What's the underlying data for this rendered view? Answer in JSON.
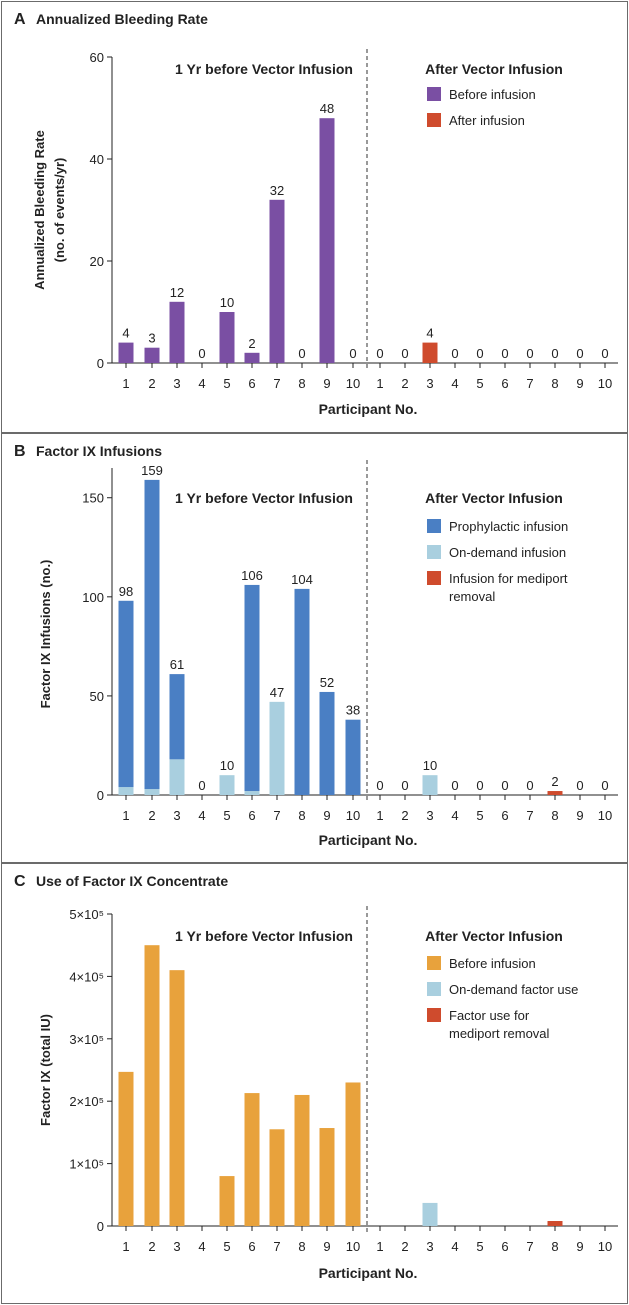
{
  "chart_data": [
    {
      "type": "bar",
      "panel_letter": "A",
      "title": "Annualized Bleeding Rate",
      "ylabel_lines": [
        "Annualized Bleeding Rate",
        "(no. of events/yr)"
      ],
      "xlabel": "Participant No.",
      "ylim": [
        0,
        60
      ],
      "yticks": [
        "0",
        "20",
        "40",
        "60"
      ],
      "section_labels": [
        "1 Yr before Vector Infusion",
        "After Vector Infusion"
      ],
      "categories": [
        "1",
        "2",
        "3",
        "4",
        "5",
        "6",
        "7",
        "8",
        "9",
        "10"
      ],
      "legend": [
        {
          "label": "Before infusion",
          "color": "#7a4fa3"
        },
        {
          "label": "After infusion",
          "color": "#cf4b2d"
        }
      ],
      "groups": [
        {
          "name": "1 Yr before Vector Infusion",
          "series": [
            {
              "key": "before",
              "color": "#7a4fa3",
              "values": [
                4,
                3,
                12,
                0,
                10,
                2,
                32,
                0,
                48,
                0
              ]
            }
          ],
          "totals": [
            4,
            3,
            12,
            0,
            10,
            2,
            32,
            0,
            48,
            0
          ],
          "labels": [
            "4",
            "3",
            "12",
            "0",
            "10",
            "2",
            "32",
            "0",
            "48",
            "0"
          ]
        },
        {
          "name": "After Vector Infusion",
          "series": [
            {
              "key": "after",
              "color": "#cf4b2d",
              "values": [
                0,
                0,
                4,
                0,
                0,
                0,
                0,
                0,
                0,
                0
              ]
            }
          ],
          "totals": [
            0,
            0,
            4,
            0,
            0,
            0,
            0,
            0,
            0,
            0
          ],
          "labels": [
            "0",
            "0",
            "4",
            "0",
            "0",
            "0",
            "0",
            "0",
            "0",
            "0"
          ]
        }
      ]
    },
    {
      "type": "bar",
      "panel_letter": "B",
      "title": "Factor IX Infusions",
      "ylabel_lines": [
        "Factor IX Infusions (no.)"
      ],
      "xlabel": "Participant No.",
      "ylim": [
        0,
        165
      ],
      "yticks": [
        "0",
        "50",
        "100",
        "150"
      ],
      "section_labels": [
        "1 Yr before Vector Infusion",
        "After Vector Infusion"
      ],
      "categories": [
        "1",
        "2",
        "3",
        "4",
        "5",
        "6",
        "7",
        "8",
        "9",
        "10"
      ],
      "legend": [
        {
          "label": "Prophylactic infusion",
          "color": "#4a7fc4"
        },
        {
          "label": "On-demand infusion",
          "color": "#a9cfdf"
        },
        {
          "label": "Infusion for mediport removal",
          "color": "#cf4b2d"
        }
      ],
      "groups": [
        {
          "name": "1 Yr before Vector Infusion",
          "series": [
            {
              "key": "on-demand",
              "color": "#a9cfdf",
              "values": [
                4,
                3,
                18,
                0,
                10,
                2,
                47,
                0,
                0,
                0
              ]
            },
            {
              "key": "prophylactic",
              "color": "#4a7fc4",
              "values": [
                94,
                156,
                43,
                0,
                0,
                104,
                0,
                104,
                52,
                38
              ]
            }
          ],
          "totals": [
            98,
            159,
            61,
            0,
            10,
            106,
            47,
            104,
            52,
            38
          ],
          "labels": [
            "98",
            "159",
            "61",
            "0",
            "10",
            "106",
            "47",
            "104",
            "52",
            "38"
          ]
        },
        {
          "name": "After Vector Infusion",
          "series": [
            {
              "key": "on-demand",
              "color": "#a9cfdf",
              "values": [
                0,
                0,
                10,
                0,
                0,
                0,
                0,
                0,
                0,
                0
              ]
            },
            {
              "key": "mediport",
              "color": "#cf4b2d",
              "values": [
                0,
                0,
                0,
                0,
                0,
                0,
                0,
                2,
                0,
                0
              ]
            }
          ],
          "totals": [
            0,
            0,
            10,
            0,
            0,
            0,
            0,
            2,
            0,
            0
          ],
          "labels": [
            "0",
            "0",
            "10",
            "0",
            "0",
            "0",
            "0",
            "2",
            "0",
            "0"
          ]
        }
      ]
    },
    {
      "type": "bar",
      "panel_letter": "C",
      "title": "Use of Factor IX Concentrate",
      "ylabel_lines": [
        "Factor IX (total IU)"
      ],
      "xlabel": "Participant No.",
      "ylim": [
        0,
        500000
      ],
      "yticks": [
        "0",
        "1×10⁵",
        "2×10⁵",
        "3×10⁵",
        "4×10⁵",
        "5×10⁵"
      ],
      "section_labels": [
        "1 Yr before Vector Infusion",
        "After Vector Infusion"
      ],
      "categories": [
        "1",
        "2",
        "3",
        "4",
        "5",
        "6",
        "7",
        "8",
        "9",
        "10"
      ],
      "legend": [
        {
          "label": "Before infusion",
          "color": "#e8a23c"
        },
        {
          "label": "On-demand factor use",
          "color": "#a9cfdf"
        },
        {
          "label": "Factor use for mediport removal",
          "color": "#cf4b2d"
        }
      ],
      "groups": [
        {
          "name": "1 Yr before Vector Infusion",
          "series": [
            {
              "key": "before",
              "color": "#e8a23c",
              "values": [
                247000,
                450000,
                410000,
                0,
                80000,
                213000,
                155000,
                210000,
                157000,
                230000
              ]
            }
          ],
          "totals": [
            247000,
            450000,
            410000,
            0,
            80000,
            213000,
            155000,
            210000,
            157000,
            230000
          ],
          "labels": []
        },
        {
          "name": "After Vector Infusion",
          "series": [
            {
              "key": "on-demand",
              "color": "#a9cfdf",
              "values": [
                0,
                0,
                37000,
                0,
                0,
                0,
                0,
                0,
                0,
                0
              ]
            },
            {
              "key": "mediport",
              "color": "#cf4b2d",
              "values": [
                0,
                0,
                0,
                0,
                0,
                0,
                0,
                8000,
                0,
                0
              ]
            }
          ],
          "totals": [
            0,
            0,
            37000,
            0,
            0,
            0,
            0,
            8000,
            0,
            0
          ],
          "labels": []
        }
      ]
    }
  ]
}
